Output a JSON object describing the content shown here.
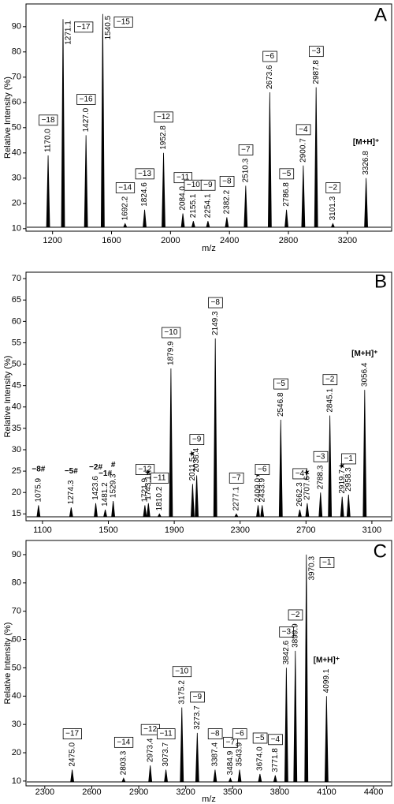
{
  "chart_data": [
    {
      "type": "spectrum",
      "panel_label": "A",
      "ylabel": "Relative Intensity (%)",
      "xlabel": "m/z",
      "xlim": [
        1020,
        3500
      ],
      "ylim": [
        9,
        99
      ],
      "xticks": [
        1200,
        1600,
        2000,
        2400,
        2800,
        3200
      ],
      "yticks": [
        10,
        20,
        30,
        40,
        50,
        60,
        70,
        80,
        90
      ],
      "color": "#000000",
      "x": [
        1170.0,
        1271.1,
        1427.0,
        1540.5,
        1692.2,
        1824.6,
        1952.8,
        2084.0,
        2155.1,
        2254.1,
        2382.2,
        2510.3,
        2673.6,
        2786.8,
        2900.7,
        2987.8,
        3101.3,
        3326.8
      ],
      "values": [
        39,
        93,
        47,
        95,
        12,
        17.5,
        40,
        16,
        13,
        13,
        14.5,
        27,
        64,
        17.5,
        35,
        66,
        12,
        30
      ],
      "x_labels": [
        "1170.0",
        "1271.1",
        "1427.0",
        "1540.5",
        "1692.2",
        "1824.6",
        "1952.8",
        "2084.0",
        "2155.1",
        "2254.1",
        "2382.2",
        "2510.3",
        "2673.6",
        "2786.8",
        "2900.7",
        "2987.8",
        "3101.3",
        "3326.8"
      ],
      "ion_labels": [
        "−18",
        "−17",
        "−16",
        "−15",
        "−14",
        "−13",
        "−12",
        "−11",
        "−10",
        "−9",
        "−8",
        "−7",
        "−6",
        "−5",
        "−4",
        "−3",
        "−2",
        "[M+H]⁺"
      ]
    },
    {
      "type": "spectrum",
      "panel_label": "B",
      "ylabel": "Relative Intensity (%)",
      "xlim": [
        1000,
        3220
      ],
      "ylim": [
        13.4,
        71.5
      ],
      "xticks": [
        1100,
        1500,
        1900,
        2300,
        2700,
        3100
      ],
      "yticks": [
        15,
        20,
        25,
        30,
        35,
        40,
        45,
        50,
        55,
        60,
        65,
        70
      ],
      "color": "#000000",
      "x": [
        1075.9,
        1274.3,
        1423.6,
        1481.2,
        1529.3,
        1721.9,
        1743.1,
        1810.2,
        1879.9,
        2011.5,
        2036.4,
        2149.3,
        2277.1,
        2409.0,
        2433.9,
        2546.8,
        2662.3,
        2707.6,
        2788.3,
        2845.1,
        2919.7,
        2958.3,
        3056.4
      ],
      "values": [
        17,
        16.5,
        17.5,
        16,
        18,
        17,
        17.5,
        15,
        49,
        22,
        24,
        56,
        15,
        17,
        17,
        37,
        16,
        17.5,
        20,
        38,
        19,
        19.5,
        44
      ],
      "x_labels": [
        "1075.9",
        "1274.3",
        "1423.6",
        "1481.2",
        "1529.3",
        "1721.9",
        "1743.1★",
        "1810.2",
        "1879.9",
        "2011.5★",
        "2036.4",
        "2149.3",
        "2277.1",
        "2409.0★",
        "2433.9",
        "2546.8",
        "2662.3",
        "2707.6★",
        "2788.3",
        "2845.1",
        "2919.7★",
        "2958.3",
        "3056.4"
      ],
      "ion_labels": [
        "−8#",
        "−5#",
        "−2#",
        "−1#",
        "#",
        "−12",
        null,
        "−11",
        "−10",
        null,
        "−9",
        "−8",
        "−7",
        null,
        "−6",
        "−5",
        "−4",
        null,
        "−3",
        "−2",
        null,
        "−1",
        "[M+H]⁺"
      ]
    },
    {
      "type": "spectrum",
      "panel_label": "C",
      "ylabel": "Relative Intensity (%)",
      "xlabel": "m/z",
      "xlim": [
        2180,
        4515
      ],
      "ylim": [
        8.3,
        95
      ],
      "xticks": [
        2300,
        2600,
        2900,
        3200,
        3500,
        3800,
        4100,
        4400
      ],
      "yticks": [
        10,
        20,
        30,
        40,
        50,
        60,
        70,
        80,
        90
      ],
      "color": "#000000",
      "x": [
        2475.0,
        2803.3,
        2973.4,
        3073.7,
        3175.2,
        3273.7,
        3387.4,
        3484.9,
        3543.9,
        3674.0,
        3771.8,
        3842.6,
        3899.9,
        3970.3,
        4099.1
      ],
      "values": [
        14,
        11,
        15.5,
        14,
        36,
        27,
        14,
        11,
        14,
        12.5,
        12,
        50,
        56,
        90,
        40
      ],
      "x_labels": [
        "2475.0",
        "2803.3",
        "2973.4",
        "3073.7",
        "3175.2",
        "3273.7",
        "3387.4",
        "3484.9",
        "3543.9",
        "3674.0",
        "3771.8",
        "3842.6",
        "3899.9",
        "3970.3",
        "4099.1"
      ],
      "ion_labels": [
        "−17",
        "−14",
        "−12",
        "−11",
        "−10",
        "−9",
        "−8",
        "−7",
        "−6",
        "−5",
        "−4",
        "−3",
        "−2",
        "−1",
        "[M+H]⁺"
      ]
    }
  ]
}
